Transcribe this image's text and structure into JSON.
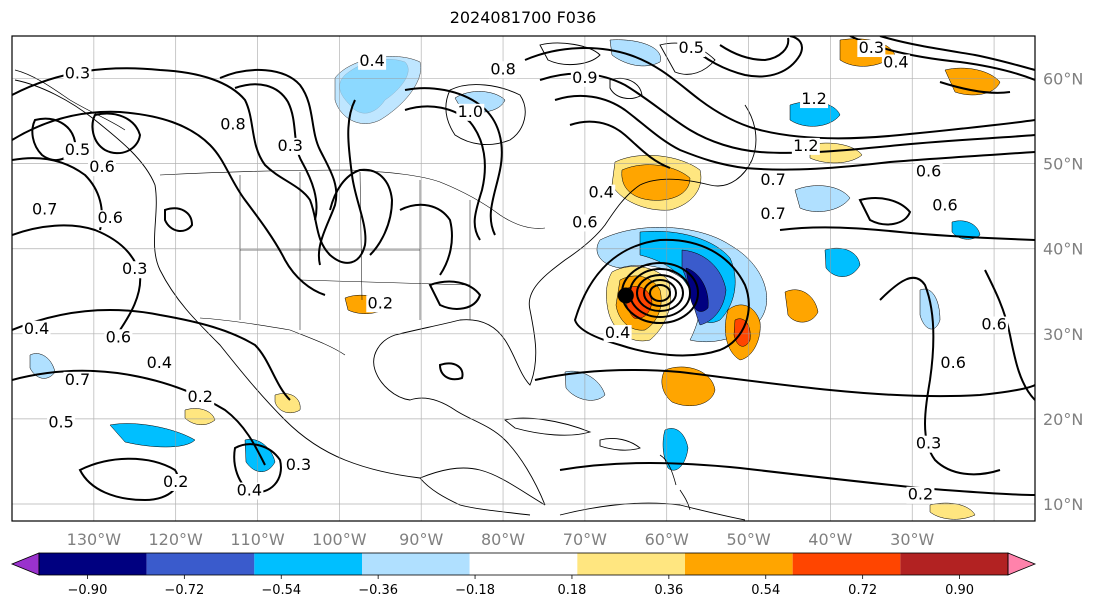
{
  "title": "2024081700 F036",
  "map": {
    "lon_range": [
      -140,
      -15
    ],
    "lat_range": [
      8,
      65
    ],
    "projection": "equirectangular",
    "grid": true,
    "lon_ticks": [
      "130°W",
      "120°W",
      "110°W",
      "100°W",
      "90°W",
      "80°W",
      "70°W",
      "60°W",
      "50°W",
      "40°W",
      "30°W"
    ],
    "lat_ticks": [
      "10°N",
      "20°N",
      "30°N",
      "40°N",
      "50°N",
      "60°N"
    ],
    "storm_marker": {
      "lon": -65,
      "lat": 34.5
    }
  },
  "contour_labels": [
    {
      "text": "0.3",
      "lon": -132,
      "lat": 60
    },
    {
      "text": "0.4",
      "lon": -96,
      "lat": 61.5
    },
    {
      "text": "0.8",
      "lon": -80,
      "lat": 60.5
    },
    {
      "text": "0.9",
      "lon": -70,
      "lat": 59.5
    },
    {
      "text": "0.5",
      "lon": -57,
      "lat": 63
    },
    {
      "text": "0.3",
      "lon": -35,
      "lat": 63
    },
    {
      "text": "0.4",
      "lon": -32,
      "lat": 61.3
    },
    {
      "text": "1.0",
      "lon": -84,
      "lat": 55.5
    },
    {
      "text": "1.2",
      "lon": -42,
      "lat": 57
    },
    {
      "text": "1.2",
      "lon": -43,
      "lat": 51.5
    },
    {
      "text": "0.5",
      "lon": -132,
      "lat": 51
    },
    {
      "text": "0.6",
      "lon": -129,
      "lat": 49
    },
    {
      "text": "0.8",
      "lon": -113,
      "lat": 54
    },
    {
      "text": "0.3",
      "lon": -106,
      "lat": 51.5
    },
    {
      "text": "0.7",
      "lon": -47,
      "lat": 47.5
    },
    {
      "text": "0.6",
      "lon": -28,
      "lat": 48.5
    },
    {
      "text": "0.6",
      "lon": -26,
      "lat": 44.5
    },
    {
      "text": "0.7",
      "lon": -47,
      "lat": 43.5
    },
    {
      "text": "0.7",
      "lon": -136,
      "lat": 44
    },
    {
      "text": "0.6",
      "lon": -128,
      "lat": 43
    },
    {
      "text": "0.3",
      "lon": -125,
      "lat": 37
    },
    {
      "text": "0.4",
      "lon": -68,
      "lat": 46
    },
    {
      "text": "0.6",
      "lon": -70,
      "lat": 42.5
    },
    {
      "text": "0.2",
      "lon": -95,
      "lat": 33
    },
    {
      "text": "0.4",
      "lon": -137,
      "lat": 30
    },
    {
      "text": "0.6",
      "lon": -127,
      "lat": 29
    },
    {
      "text": "0.4",
      "lon": -66,
      "lat": 29.5
    },
    {
      "text": "0.6",
      "lon": -20,
      "lat": 30.5
    },
    {
      "text": "0.6",
      "lon": -25,
      "lat": 26
    },
    {
      "text": "0.7",
      "lon": -132,
      "lat": 24
    },
    {
      "text": "0.4",
      "lon": -122,
      "lat": 26
    },
    {
      "text": "0.2",
      "lon": -117,
      "lat": 22
    },
    {
      "text": "0.5",
      "lon": -134,
      "lat": 19
    },
    {
      "text": "0.3",
      "lon": -105,
      "lat": 14
    },
    {
      "text": "0.2",
      "lon": -120,
      "lat": 12
    },
    {
      "text": "0.4",
      "lon": -111,
      "lat": 11
    },
    {
      "text": "0.3",
      "lon": -28,
      "lat": 16.5
    },
    {
      "text": "0.2",
      "lon": -29,
      "lat": 10.5
    }
  ],
  "colorbar": {
    "levels": [
      "−0.90",
      "−0.72",
      "−0.54",
      "−0.36",
      "−0.18",
      "0.18",
      "0.36",
      "0.54",
      "0.72",
      "0.90"
    ],
    "colors": [
      "#9a32cd",
      "#000080",
      "#3a5bcc",
      "#00bfff",
      "#b0e0ff",
      "#ffffff",
      "#ffe680",
      "#ffa500",
      "#ff4500",
      "#b22222",
      "#ff82ab"
    ],
    "extend": "both"
  }
}
